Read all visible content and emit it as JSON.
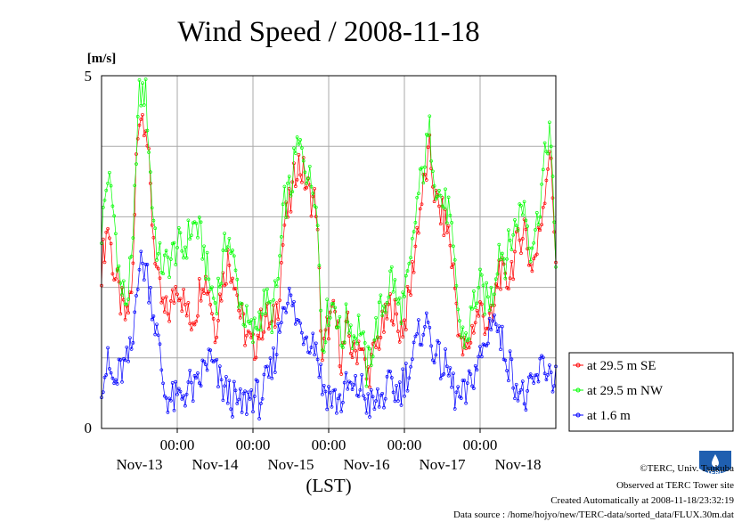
{
  "chart_data": {
    "type": "line",
    "title": "Wind Speed / 2008-11-18",
    "ylabel": "[m/s]",
    "xlabel": "(LST)",
    "ylim": [
      0,
      5
    ],
    "y_ticks": [
      "0",
      "5"
    ],
    "x_range_hours": [
      0,
      144
    ],
    "x_time_ticks": [
      "00:00",
      "00:00",
      "00:00",
      "00:00",
      "00:00"
    ],
    "x_day_labels": [
      "Nov-13",
      "Nov-14",
      "Nov-15",
      "Nov-16",
      "Nov-17",
      "Nov-18"
    ],
    "grid": true,
    "legend_position": "right",
    "series": [
      {
        "name": "at 29.5 m SE",
        "color": "#ff0000",
        "keys": [
          [
            0,
            2.3
          ],
          [
            2,
            2.9
          ],
          [
            4,
            2.2
          ],
          [
            6,
            1.8
          ],
          [
            8,
            1.5
          ],
          [
            10,
            2.2
          ],
          [
            11,
            3.8
          ],
          [
            12,
            4.5
          ],
          [
            14,
            4.4
          ],
          [
            16,
            3.0
          ],
          [
            18,
            2.0
          ],
          [
            20,
            1.6
          ],
          [
            22,
            1.7
          ],
          [
            24,
            2.1
          ],
          [
            26,
            1.8
          ],
          [
            28,
            1.5
          ],
          [
            30,
            1.7
          ],
          [
            32,
            2.2
          ],
          [
            34,
            2.0
          ],
          [
            36,
            1.4
          ],
          [
            38,
            2.0
          ],
          [
            40,
            2.4
          ],
          [
            42,
            2.2
          ],
          [
            44,
            1.6
          ],
          [
            46,
            1.3
          ],
          [
            48,
            1.1
          ],
          [
            50,
            1.4
          ],
          [
            52,
            1.6
          ],
          [
            54,
            1.4
          ],
          [
            56,
            1.8
          ],
          [
            58,
            2.9
          ],
          [
            60,
            3.2
          ],
          [
            62,
            3.8
          ],
          [
            64,
            3.6
          ],
          [
            66,
            3.3
          ],
          [
            68,
            3.2
          ],
          [
            70,
            1.0
          ],
          [
            72,
            1.5
          ],
          [
            74,
            1.6
          ],
          [
            76,
            1.0
          ],
          [
            78,
            1.4
          ],
          [
            80,
            1.0
          ],
          [
            82,
            1.3
          ],
          [
            84,
            0.7
          ],
          [
            86,
            1.0
          ],
          [
            88,
            1.3
          ],
          [
            90,
            1.5
          ],
          [
            92,
            1.8
          ],
          [
            94,
            1.4
          ],
          [
            96,
            1.5
          ],
          [
            98,
            2.0
          ],
          [
            100,
            2.8
          ],
          [
            102,
            3.4
          ],
          [
            104,
            3.9
          ],
          [
            106,
            3.2
          ],
          [
            108,
            3.0
          ],
          [
            110,
            2.8
          ],
          [
            112,
            2.0
          ],
          [
            114,
            1.1
          ],
          [
            116,
            1.1
          ],
          [
            118,
            1.5
          ],
          [
            120,
            1.7
          ],
          [
            122,
            1.5
          ],
          [
            124,
            1.5
          ],
          [
            126,
            2.3
          ],
          [
            128,
            2.0
          ],
          [
            130,
            2.3
          ],
          [
            132,
            2.6
          ],
          [
            134,
            2.9
          ],
          [
            136,
            2.3
          ],
          [
            138,
            2.5
          ],
          [
            140,
            3.2
          ],
          [
            142,
            4.0
          ],
          [
            144,
            2.5
          ]
        ]
      },
      {
        "name": "at 29.5 m NW",
        "color": "#00ff00",
        "keys": [
          [
            0,
            2.8
          ],
          [
            2,
            3.6
          ],
          [
            4,
            3.0
          ],
          [
            6,
            2.0
          ],
          [
            8,
            1.8
          ],
          [
            10,
            2.5
          ],
          [
            11,
            4.0
          ],
          [
            12,
            4.7
          ],
          [
            14,
            4.8
          ],
          [
            16,
            3.2
          ],
          [
            18,
            2.4
          ],
          [
            20,
            2.3
          ],
          [
            22,
            2.4
          ],
          [
            24,
            2.6
          ],
          [
            26,
            2.5
          ],
          [
            28,
            2.8
          ],
          [
            30,
            2.9
          ],
          [
            32,
            2.6
          ],
          [
            34,
            2.1
          ],
          [
            36,
            1.8
          ],
          [
            38,
            2.2
          ],
          [
            40,
            2.8
          ],
          [
            42,
            2.3
          ],
          [
            44,
            1.8
          ],
          [
            46,
            1.5
          ],
          [
            48,
            1.3
          ],
          [
            50,
            1.6
          ],
          [
            52,
            1.8
          ],
          [
            54,
            1.6
          ],
          [
            56,
            2.1
          ],
          [
            58,
            3.2
          ],
          [
            60,
            3.4
          ],
          [
            62,
            4.0
          ],
          [
            64,
            3.9
          ],
          [
            66,
            3.5
          ],
          [
            68,
            3.4
          ],
          [
            70,
            1.2
          ],
          [
            72,
            1.7
          ],
          [
            74,
            1.8
          ],
          [
            76,
            1.2
          ],
          [
            78,
            1.6
          ],
          [
            80,
            1.3
          ],
          [
            82,
            1.5
          ],
          [
            84,
            0.8
          ],
          [
            86,
            1.2
          ],
          [
            88,
            1.6
          ],
          [
            90,
            1.8
          ],
          [
            92,
            2.2
          ],
          [
            94,
            1.7
          ],
          [
            96,
            1.8
          ],
          [
            98,
            2.3
          ],
          [
            100,
            3.2
          ],
          [
            102,
            3.7
          ],
          [
            104,
            4.2
          ],
          [
            106,
            3.5
          ],
          [
            108,
            3.2
          ],
          [
            110,
            3.1
          ],
          [
            112,
            2.2
          ],
          [
            114,
            1.3
          ],
          [
            116,
            1.3
          ],
          [
            118,
            1.8
          ],
          [
            120,
            2.0
          ],
          [
            122,
            1.8
          ],
          [
            124,
            1.9
          ],
          [
            126,
            2.6
          ],
          [
            128,
            2.4
          ],
          [
            130,
            2.7
          ],
          [
            132,
            3.0
          ],
          [
            134,
            3.2
          ],
          [
            136,
            2.6
          ],
          [
            138,
            2.9
          ],
          [
            140,
            3.6
          ],
          [
            142,
            4.3
          ],
          [
            144,
            2.4
          ]
        ]
      },
      {
        "name": "at 1.6 m",
        "color": "#0000ff",
        "keys": [
          [
            0,
            0.7
          ],
          [
            2,
            0.9
          ],
          [
            4,
            0.6
          ],
          [
            6,
            0.8
          ],
          [
            8,
            0.9
          ],
          [
            10,
            1.2
          ],
          [
            11,
            2.1
          ],
          [
            12,
            2.3
          ],
          [
            14,
            2.3
          ],
          [
            16,
            1.8
          ],
          [
            18,
            1.2
          ],
          [
            20,
            0.5
          ],
          [
            22,
            0.4
          ],
          [
            24,
            0.4
          ],
          [
            26,
            0.5
          ],
          [
            28,
            0.6
          ],
          [
            30,
            0.5
          ],
          [
            32,
            0.8
          ],
          [
            34,
            1.0
          ],
          [
            36,
            0.8
          ],
          [
            38,
            0.6
          ],
          [
            40,
            0.5
          ],
          [
            42,
            0.4
          ],
          [
            44,
            0.3
          ],
          [
            46,
            0.4
          ],
          [
            48,
            0.5
          ],
          [
            50,
            0.4
          ],
          [
            52,
            0.6
          ],
          [
            54,
            0.8
          ],
          [
            56,
            1.3
          ],
          [
            58,
            1.9
          ],
          [
            60,
            1.8
          ],
          [
            62,
            1.5
          ],
          [
            64,
            1.4
          ],
          [
            66,
            1.3
          ],
          [
            68,
            1.2
          ],
          [
            70,
            0.6
          ],
          [
            72,
            0.5
          ],
          [
            74,
            0.4
          ],
          [
            76,
            0.4
          ],
          [
            78,
            0.6
          ],
          [
            80,
            0.5
          ],
          [
            82,
            0.6
          ],
          [
            84,
            0.4
          ],
          [
            86,
            0.3
          ],
          [
            88,
            0.4
          ],
          [
            90,
            0.5
          ],
          [
            92,
            0.6
          ],
          [
            94,
            0.5
          ],
          [
            96,
            0.7
          ],
          [
            98,
            0.9
          ],
          [
            100,
            1.2
          ],
          [
            102,
            1.5
          ],
          [
            104,
            1.4
          ],
          [
            106,
            1.0
          ],
          [
            108,
            0.9
          ],
          [
            110,
            0.8
          ],
          [
            112,
            0.5
          ],
          [
            114,
            0.4
          ],
          [
            116,
            0.5
          ],
          [
            118,
            0.8
          ],
          [
            120,
            1.0
          ],
          [
            122,
            1.2
          ],
          [
            124,
            1.7
          ],
          [
            126,
            1.3
          ],
          [
            128,
            1.1
          ],
          [
            130,
            0.8
          ],
          [
            132,
            0.6
          ],
          [
            134,
            0.4
          ],
          [
            136,
            0.5
          ],
          [
            138,
            0.7
          ],
          [
            140,
            0.9
          ],
          [
            142,
            0.8
          ],
          [
            144,
            0.7
          ]
        ]
      }
    ]
  },
  "logo": {
    "text": "TERC"
  },
  "footer": {
    "credit": "©TERC, Univ. Tsukuba",
    "observed": "Observed at TERC Tower site",
    "created": "Created Automatically at 2008-11-18/23:32:19",
    "source": "Data source : /home/hojyo/new/TERC-data/sorted_data/FLUX.30m.dat"
  }
}
